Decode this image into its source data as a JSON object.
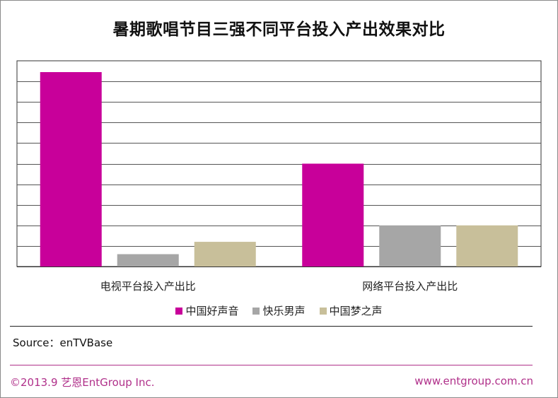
{
  "title": "暑期歌唱节目三强不同平台投入产出效果对比",
  "chart_data": {
    "type": "bar",
    "categories": [
      "电视平台投入产出比",
      "网络平台投入产出比"
    ],
    "series": [
      {
        "name": "中国好声音",
        "color": "#c8009a",
        "values": [
          9.45,
          5.0
        ]
      },
      {
        "name": "快乐男声",
        "color": "#a6a6a6",
        "values": [
          0.6,
          2.0
        ]
      },
      {
        "name": "中国梦之声",
        "color": "#c8bf9a",
        "values": [
          1.2,
          2.0
        ]
      }
    ],
    "ylim": [
      0,
      10
    ],
    "grid": true,
    "legend_position": "bottom"
  },
  "source": "Source：enTVBase",
  "footer": {
    "left": "©2013.9  艺恩EntGroup Inc.",
    "right": "www.entgroup.com.cn"
  }
}
